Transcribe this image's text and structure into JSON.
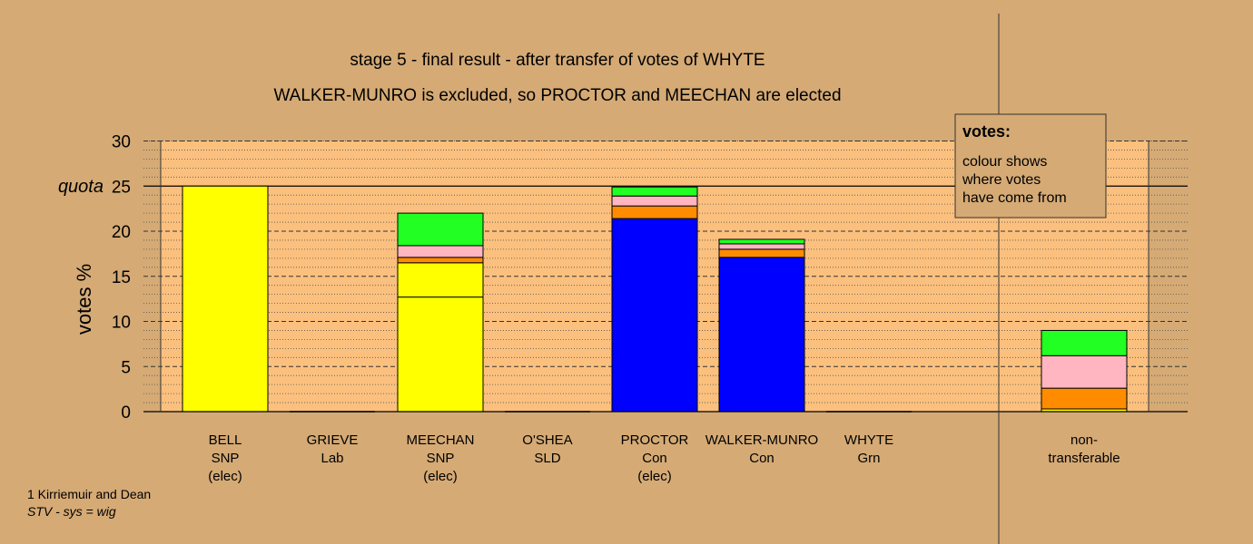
{
  "chart_data": {
    "type": "bar",
    "stacked": true,
    "title": "stage 5 - final result - after transfer of votes of WHYTE",
    "subtitle": "WALKER-MUNRO is excluded, so PROCTOR and MEECHAN are elected",
    "ylabel": "votes %",
    "ylim": [
      0,
      30
    ],
    "yticks": [
      0,
      5,
      10,
      15,
      20,
      25,
      30
    ],
    "quota": {
      "label": "quota",
      "value": 25
    },
    "candidates": [
      {
        "lines": [
          "BELL",
          "SNP",
          "(elec)"
        ],
        "segments": [
          {
            "value": 25.0,
            "color": "#ffff00"
          }
        ]
      },
      {
        "lines": [
          "GRIEVE",
          "Lab"
        ],
        "segments": []
      },
      {
        "lines": [
          "MEECHAN",
          "SNP",
          "(elec)"
        ],
        "segments": [
          {
            "value": 12.7,
            "color": "#ffff00"
          },
          {
            "value": 3.8,
            "color": "#ffff00"
          },
          {
            "value": 0.6,
            "color": "#ff8c00"
          },
          {
            "value": 1.3,
            "color": "#ffb6c1"
          },
          {
            "value": 3.6,
            "color": "#22ff22"
          }
        ]
      },
      {
        "lines": [
          "O'SHEA",
          "SLD"
        ],
        "segments": []
      },
      {
        "lines": [
          "PROCTOR",
          "Con",
          "(elec)"
        ],
        "segments": [
          {
            "value": 21.4,
            "color": "#0000ff"
          },
          {
            "value": 1.4,
            "color": "#ff8c00"
          },
          {
            "value": 1.1,
            "color": "#ffb6c1"
          },
          {
            "value": 1.0,
            "color": "#22ff22"
          }
        ]
      },
      {
        "lines": [
          "WALKER-MUNRO",
          "Con"
        ],
        "segments": [
          {
            "value": 17.1,
            "color": "#0000ff"
          },
          {
            "value": 0.9,
            "color": "#ff8c00"
          },
          {
            "value": 0.6,
            "color": "#ffb6c1"
          },
          {
            "value": 0.5,
            "color": "#22ff22"
          }
        ]
      },
      {
        "lines": [
          "WHYTE",
          "Grn"
        ],
        "segments": []
      }
    ],
    "nontransferable": {
      "lines": [
        "non-",
        "transferable"
      ],
      "segments": [
        {
          "value": 0.3,
          "color": "#ffff00"
        },
        {
          "value": 2.3,
          "color": "#ff8c00"
        },
        {
          "value": 3.6,
          "color": "#ffb6c1"
        },
        {
          "value": 2.8,
          "color": "#22ff22"
        }
      ]
    },
    "legend": {
      "position": "top-right",
      "title": "votes:",
      "lines": [
        "colour shows",
        "where votes",
        "have come from"
      ]
    },
    "colors": {
      "page_bg": "#d5aa75",
      "plot_bg": "#fbc07e",
      "axis": "#000000"
    }
  },
  "footer": {
    "line1": "1 Kirriemuir and Dean",
    "line2": "STV - sys = wig"
  }
}
